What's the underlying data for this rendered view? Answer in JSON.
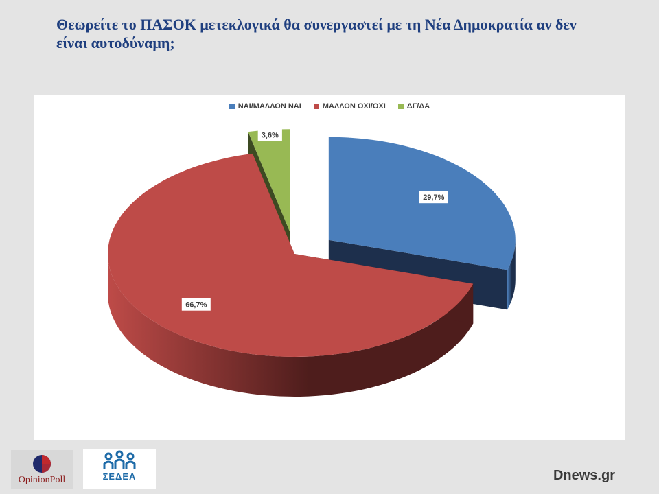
{
  "question": "Θεωρείτε το ΠΑΣΟΚ μετεκλογικά θα συνεργαστεί με τη Νέα Δημοκρατία αν δεν είναι αυτοδύναμη;",
  "chart_data": {
    "type": "pie",
    "title": "",
    "categories": [
      "ΝΑΙ/ΜΑΛΛΟΝ ΝΑΙ",
      "ΜΑΛΛΟΝ ΟΧΙ/ΟΧΙ",
      "ΔΓ/ΔΑ"
    ],
    "values": [
      29.7,
      66.7,
      3.6
    ],
    "data_labels": [
      "29,7%",
      "66,7%",
      "3,6%"
    ],
    "colors": [
      "#4a7ebb",
      "#be4b48",
      "#98b954"
    ],
    "side_colors": [
      "#1d2f4c",
      "#4e1d1c",
      "#3c4a22"
    ],
    "legend_position": "top",
    "style": "3d-exploded"
  },
  "logos": {
    "opinionpoll_text": "OpinionPoll",
    "sedea_text": "ΣΕΔΕΑ"
  },
  "source": "Dnews.gr"
}
